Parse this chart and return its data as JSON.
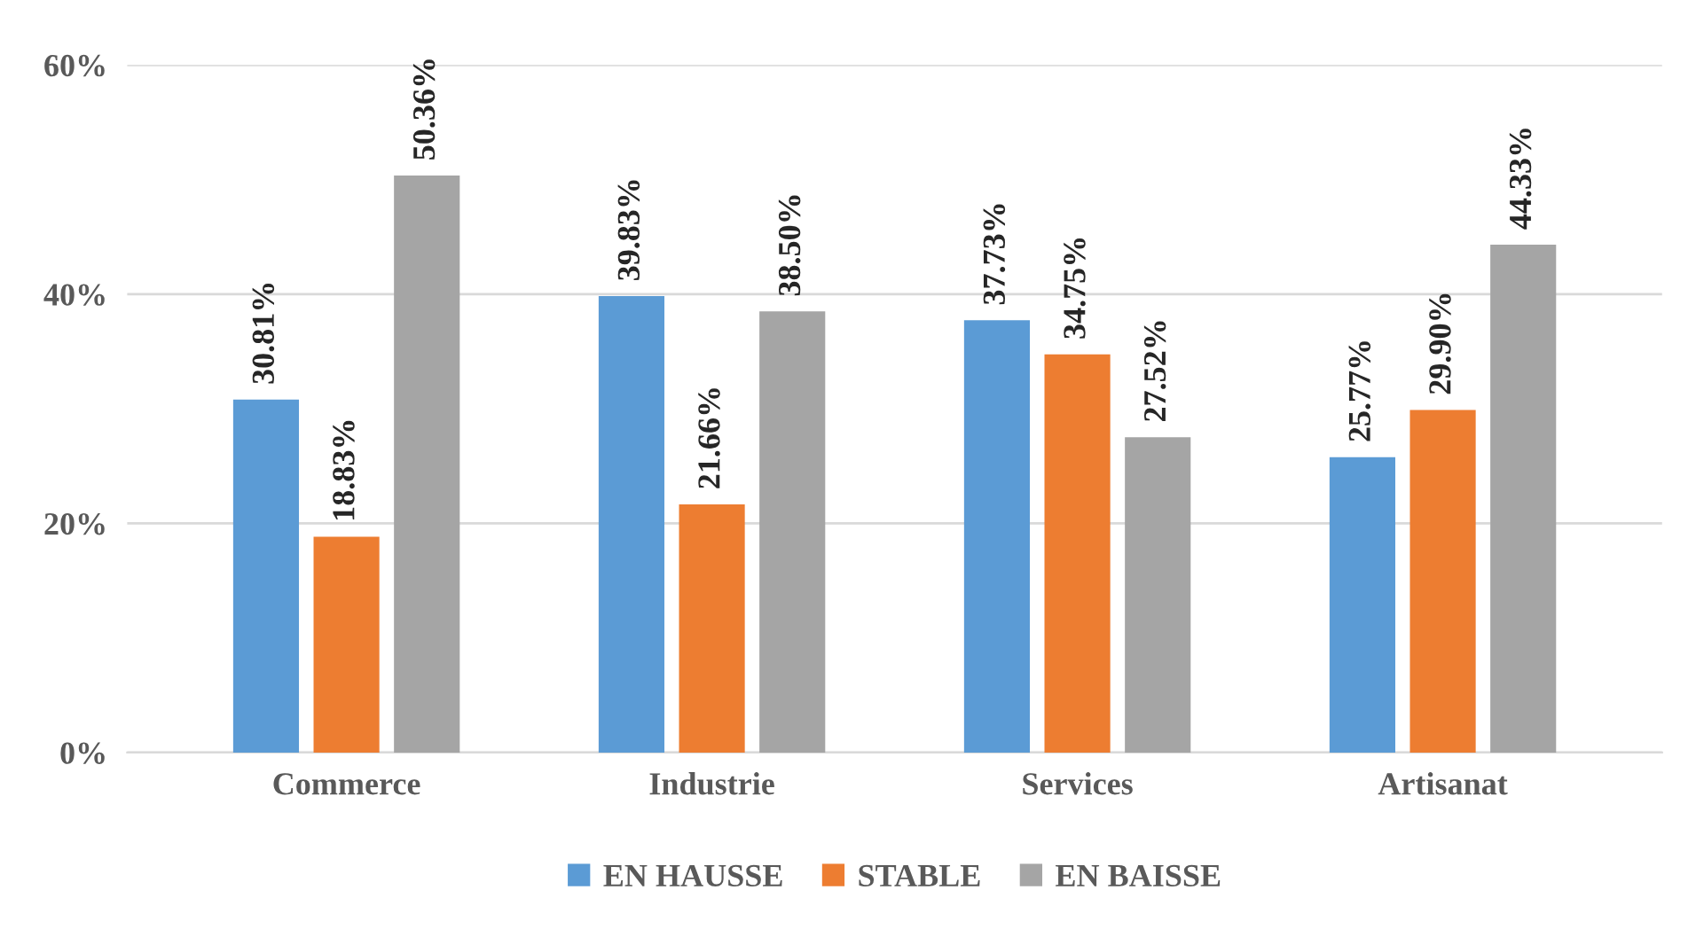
{
  "chart_data": {
    "type": "bar",
    "categories": [
      "Commerce",
      "Industrie",
      "Services",
      "Artisanat"
    ],
    "series": [
      {
        "name": "EN HAUSSE",
        "color": "#5b9bd5",
        "values": [
          30.81,
          39.83,
          37.73,
          25.77
        ],
        "value_labels": [
          "30.81%",
          "39.83%",
          "37.73%",
          "25.77%"
        ]
      },
      {
        "name": "STABLE",
        "color": "#ed7d31",
        "values": [
          18.83,
          21.66,
          34.75,
          29.9
        ],
        "value_labels": [
          "18.83%",
          "21.66%",
          "34.75%",
          "29.90%"
        ]
      },
      {
        "name": "EN BAISSE",
        "color": "#a5a5a5",
        "values": [
          50.36,
          38.5,
          27.52,
          44.33
        ],
        "value_labels": [
          "50.36%",
          "38.50%",
          "27.52%",
          "44.33%"
        ]
      }
    ],
    "ylim": [
      0,
      60
    ],
    "yticks": [
      {
        "value": 0,
        "label": "0%"
      },
      {
        "value": 20,
        "label": "20%"
      },
      {
        "value": 40,
        "label": "40%"
      },
      {
        "value": 60,
        "label": "60%"
      }
    ],
    "grid": "y",
    "legend": "bottom"
  }
}
